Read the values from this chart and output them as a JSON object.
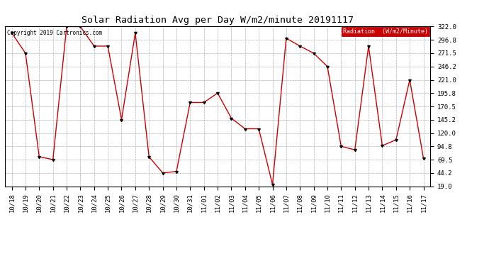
{
  "title": "Solar Radiation Avg per Day W/m2/minute 20191117",
  "copyright_text": "Copyright 2019 Cartronics.com",
  "legend_label": "Radiation  (W/m2/Minute)",
  "dates": [
    "10/18",
    "10/19",
    "10/20",
    "10/21",
    "10/22",
    "10/23",
    "10/24",
    "10/25",
    "10/26",
    "10/27",
    "10/28",
    "10/29",
    "10/30",
    "10/31",
    "11/01",
    "11/02",
    "11/03",
    "11/04",
    "11/05",
    "11/06",
    "11/07",
    "11/08",
    "11/09",
    "11/10",
    "11/11",
    "11/12",
    "11/13",
    "11/14",
    "11/15",
    "11/16",
    "11/17"
  ],
  "values": [
    310.0,
    271.5,
    75.0,
    69.5,
    322.0,
    322.0,
    285.0,
    285.0,
    145.2,
    310.0,
    75.0,
    44.2,
    47.0,
    178.0,
    178.0,
    195.8,
    148.0,
    128.0,
    128.0,
    22.0,
    300.0,
    285.0,
    271.5,
    246.2,
    94.8,
    88.0,
    285.0,
    96.0,
    107.0,
    221.0,
    72.0
  ],
  "y_ticks": [
    19.0,
    44.2,
    69.5,
    94.8,
    120.0,
    145.2,
    170.5,
    195.8,
    221.0,
    246.2,
    271.5,
    296.8,
    322.0
  ],
  "ylim": [
    19.0,
    322.0
  ],
  "line_color": "#cc0000",
  "marker_color": "#000000",
  "background_color": "#ffffff",
  "grid_color": "#b0b0b0",
  "legend_bg": "#cc0000",
  "legend_text_color": "#ffffff",
  "title_fontsize": 9.5,
  "tick_fontsize": 6.5,
  "copyright_fontsize": 5.5,
  "legend_fontsize": 6.0
}
